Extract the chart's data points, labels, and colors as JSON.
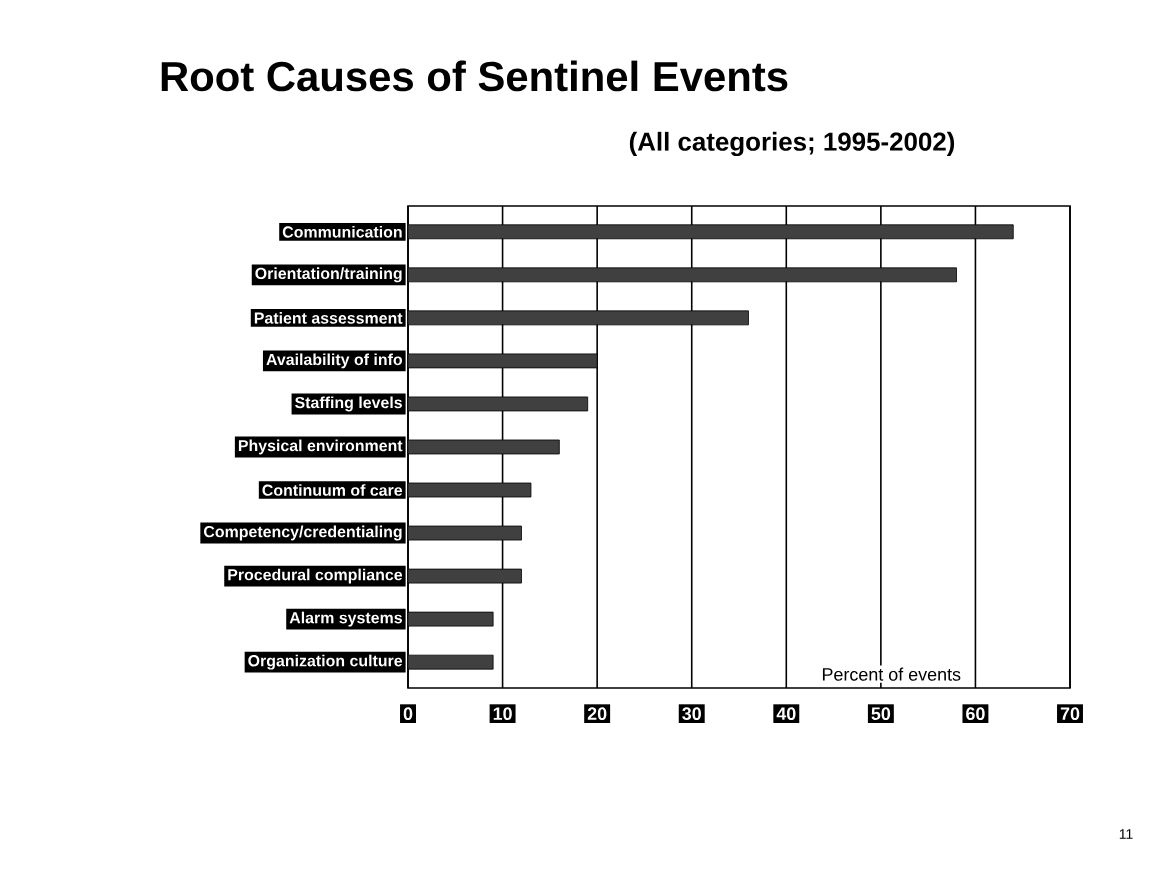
{
  "chart_data": {
    "type": "bar",
    "orientation": "horizontal",
    "title": "Root Causes of Sentinel Events",
    "subtitle": "(All categories; 1995-2002)",
    "xlabel": "Percent of events",
    "categories": [
      "Communication",
      "Orientation/training",
      "Patient assessment",
      "Availability of info",
      "Staffing levels",
      "Physical environment",
      "Continuum of care",
      "Competency/credentialing",
      "Procedural compliance",
      "Alarm systems",
      "Organization culture"
    ],
    "values": [
      64,
      58,
      36,
      20,
      19,
      16,
      13,
      12,
      12,
      9,
      9
    ],
    "color": "#404040",
    "xlim": [
      0,
      70
    ],
    "xticks": [
      0,
      10,
      20,
      30,
      40,
      50,
      60,
      70
    ],
    "grid": "x",
    "annotations": [
      "11"
    ]
  }
}
